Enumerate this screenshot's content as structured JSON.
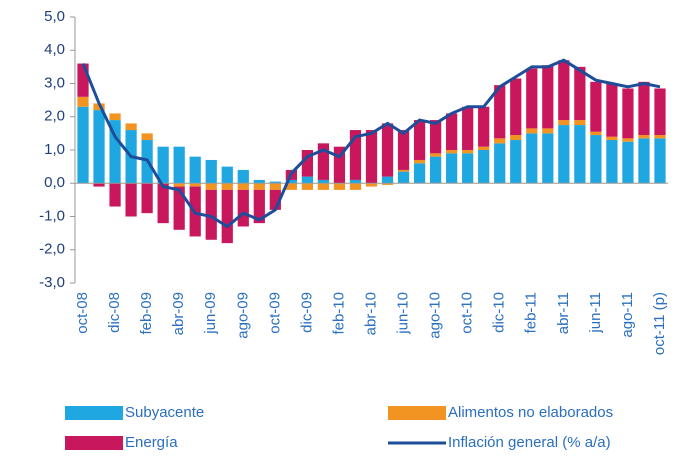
{
  "chart_data": {
    "type": "bar",
    "categories": [
      "oct-08",
      null,
      "dic-08",
      null,
      "feb-09",
      null,
      "abr-09",
      null,
      "jun-09",
      null,
      "ago-09",
      null,
      "oct-09",
      null,
      "dic-09",
      null,
      "feb-10",
      null,
      "abr-10",
      null,
      "jun-10",
      null,
      "ago-10",
      null,
      "oct-10",
      null,
      "dic-10",
      null,
      "feb-11",
      null,
      "abr-11",
      null,
      "jun-11",
      null,
      "ago-11",
      null,
      "oct-11 (p)"
    ],
    "series": [
      {
        "name": "Subyacente",
        "color": "#1ea7e1",
        "values": [
          2.3,
          2.2,
          1.9,
          1.6,
          1.3,
          1.1,
          1.1,
          0.8,
          0.7,
          0.5,
          0.4,
          0.1,
          0.05,
          0.1,
          0.2,
          0.1,
          0.0,
          0.1,
          0.0,
          0.2,
          0.35,
          0.6,
          0.8,
          0.9,
          0.9,
          1.0,
          1.2,
          1.3,
          1.5,
          1.5,
          1.75,
          1.75,
          1.45,
          1.3,
          1.25,
          1.35,
          1.35
        ]
      },
      {
        "name": "Alimentos no elaborados",
        "color": "#f29422",
        "values": [
          0.3,
          0.2,
          0.2,
          0.2,
          0.2,
          0.0,
          -0.1,
          -0.1,
          -0.2,
          -0.2,
          -0.2,
          -0.2,
          -0.2,
          -0.2,
          -0.2,
          -0.2,
          -0.2,
          -0.2,
          -0.1,
          -0.05,
          0.05,
          0.1,
          0.1,
          0.1,
          0.1,
          0.1,
          0.15,
          0.15,
          0.15,
          0.15,
          0.15,
          0.15,
          0.1,
          0.1,
          0.1,
          0.1,
          0.1
        ]
      },
      {
        "name": "Energía",
        "color": "#c8175d",
        "values": [
          1.0,
          -0.1,
          -0.7,
          -1.0,
          -0.9,
          -1.2,
          -1.3,
          -1.5,
          -1.5,
          -1.6,
          -1.1,
          -1.0,
          -0.6,
          0.3,
          0.8,
          1.1,
          1.1,
          1.5,
          1.6,
          1.6,
          1.2,
          1.2,
          1.0,
          1.1,
          1.3,
          1.2,
          1.6,
          1.7,
          1.8,
          1.9,
          1.8,
          1.6,
          1.5,
          1.6,
          1.5,
          1.6,
          1.4
        ]
      },
      {
        "name": "Inflación general (% a/a)",
        "color": "#1d4e9a",
        "type": "line",
        "values": [
          3.6,
          2.4,
          1.4,
          0.8,
          0.7,
          -0.1,
          -0.2,
          -0.9,
          -1.0,
          -1.3,
          -0.9,
          -1.1,
          -0.8,
          0.3,
          0.8,
          1.0,
          0.8,
          1.4,
          1.5,
          1.8,
          1.5,
          1.9,
          1.8,
          2.1,
          2.3,
          2.3,
          2.9,
          3.2,
          3.5,
          3.5,
          3.7,
          3.4,
          3.1,
          3.0,
          2.9,
          3.0,
          2.9
        ]
      }
    ],
    "ylim": [
      -3,
      5
    ],
    "yticks": [
      {
        "value": -3,
        "label": "-3,0"
      },
      {
        "value": -2,
        "label": "-2,0"
      },
      {
        "value": -1,
        "label": "-1,0"
      },
      {
        "value": 0,
        "label": "0,0"
      },
      {
        "value": 1,
        "label": "1,0"
      },
      {
        "value": 2,
        "label": "2,0"
      },
      {
        "value": 3,
        "label": "3,0"
      },
      {
        "value": 4,
        "label": "4,0"
      },
      {
        "value": 5,
        "label": "5,0"
      }
    ],
    "grid": false
  }
}
